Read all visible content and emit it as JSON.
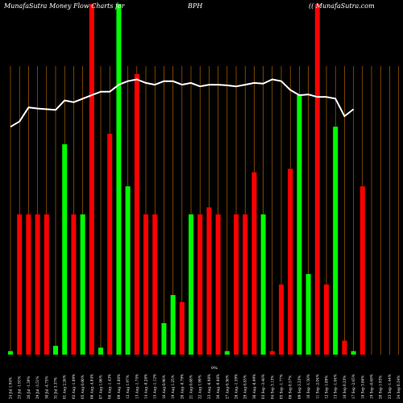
{
  "header": {
    "left": "MunafaSutra  Money Flow  Charts for",
    "center": "BPH",
    "right": "(( MunafaSutra.com"
  },
  "axis_mid_label": "0%",
  "colors": {
    "background": "#000000",
    "up": "#00ff00",
    "down": "#ff0000",
    "grid": "#c87000",
    "line": "#ffffff"
  },
  "chart_data": {
    "type": "bar",
    "title": "",
    "ylim": [
      0,
      100
    ],
    "categories": [
      "24 Jul 1.94%",
      "25 Jul -1.91%",
      "26 Jul -1.39%",
      "29 Jul -3.51%",
      "30 Jul -4.75%",
      "31 Jul 3.37%",
      "01 Aug 2.26%",
      "02 Aug -1.09%",
      "05 Aug 0.00%",
      "06 Aug -4.04%",
      "07 Aug 1.06%",
      "08 Aug -1.43%",
      "09 Aug -3.00%",
      "12 Aug 1.97%",
      "13 Aug -1.75%",
      "14 Aug -0.28%",
      "15 Aug -1.12%",
      "16 Aug 0.96%",
      "19 Aug 1.25%",
      "20 Aug -0.79%",
      "21 Aug 0.68%",
      "22 Aug 1.99%",
      "23 Aug -0.98%",
      "26 Aug -0.66%",
      "27 Aug 0.36%",
      "28 Aug -1.59%",
      "29 Aug 0.83%",
      "30 Aug -0.99%",
      "03 Sep -3.46%",
      "04 Sep 3.13%",
      "05 Sep -1.77%",
      "06 Sep 0.57%",
      "09 Sep 2.23%",
      "10 Sep -1.50%",
      "11 Sep -2.04%",
      "12 Sep 1.89%",
      "13 Sep -1.84%",
      "16 Sep 0.23%",
      "17 Sep -2.65%",
      "18 Sep 3.86%",
      "19 Sep -0.68%",
      "20 Sep 1.93%",
      "23 Sep -1.44%",
      "24 Sep 0.34%",
      "25 Sep 0.00%"
    ],
    "bar_colors": [
      "up",
      "down",
      "down",
      "down",
      "down",
      "up",
      "up",
      "down",
      "up",
      "down",
      "up",
      "down",
      "up",
      "up",
      "down",
      "down",
      "down",
      "up",
      "up",
      "down",
      "up",
      "down",
      "down",
      "down",
      "up",
      "down",
      "down",
      "down",
      "up",
      "down",
      "down",
      "down",
      "up",
      "up",
      "down",
      "down",
      "up",
      "down",
      "up",
      "down",
      "down",
      "down",
      "up",
      "down",
      "up"
    ],
    "values": [
      1,
      40,
      40,
      40,
      40,
      2.5,
      60,
      40,
      40,
      100,
      2,
      63,
      100,
      48,
      80,
      40,
      40,
      9,
      17,
      15,
      40,
      40,
      42,
      40,
      1,
      40,
      40,
      52,
      40,
      1,
      20,
      53,
      74,
      23,
      100,
      20,
      65,
      4,
      1,
      48,
      0,
      0,
      0,
      0,
      0
    ],
    "line": [
      65,
      66.5,
      70.5,
      70.2,
      70,
      69.8,
      72.5,
      72,
      73,
      74,
      75,
      75,
      77,
      78,
      78.5,
      77.5,
      77,
      78,
      78,
      77,
      77.5,
      76.5,
      77,
      77,
      76.8,
      76.5,
      77,
      77.5,
      77.3,
      78.5,
      78,
      75.5,
      74,
      74.2,
      73.5,
      73.5,
      73,
      68,
      70,
      0,
      0,
      0,
      0,
      0,
      0
    ]
  }
}
